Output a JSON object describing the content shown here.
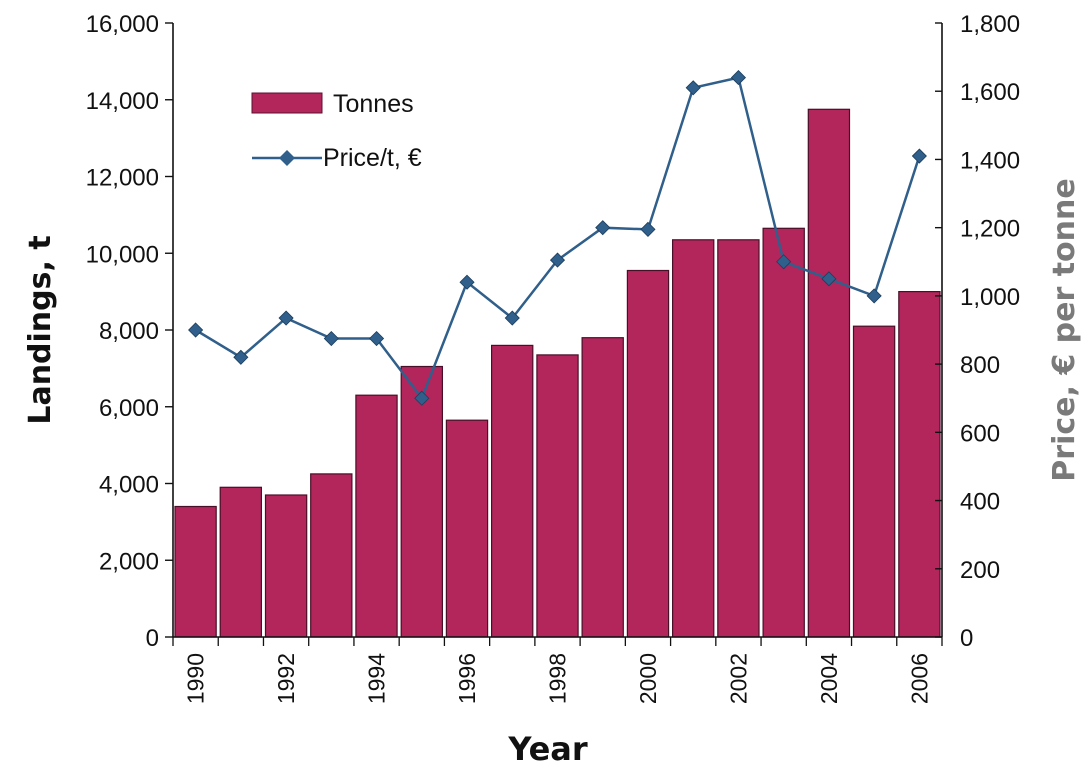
{
  "chart_data": {
    "type": "bar",
    "title": "",
    "xlabel": "Year",
    "ylabel": "Landings, t",
    "y2label": "Price, € per tonne",
    "categories": [
      "1990",
      "1991",
      "1992",
      "1993",
      "1994",
      "1995",
      "1996",
      "1997",
      "1998",
      "1999",
      "2000",
      "2001",
      "2002",
      "2003",
      "2004",
      "2005",
      "2006"
    ],
    "x_tick_labels": [
      "1990",
      "1992",
      "1994",
      "1996",
      "1998",
      "2000",
      "2002",
      "2004",
      "2006"
    ],
    "ylim": [
      0,
      16000
    ],
    "y_ticks": [
      0,
      2000,
      4000,
      6000,
      8000,
      10000,
      12000,
      14000,
      16000
    ],
    "y_tick_labels": [
      "0",
      "2,000",
      "4,000",
      "6,000",
      "8,000",
      "10,000",
      "12,000",
      "14,000",
      "16,000"
    ],
    "y2lim": [
      0,
      1800
    ],
    "y2_ticks": [
      0,
      200,
      400,
      600,
      800,
      1000,
      1200,
      1400,
      1600,
      1800
    ],
    "y2_tick_labels": [
      "0",
      "200",
      "400",
      "600",
      "800",
      "1,000",
      "1,200",
      "1,400",
      "1,600",
      "1,800"
    ],
    "grid": false,
    "legend_position": "top-left",
    "series": [
      {
        "name": "Tonnes",
        "type": "bar",
        "axis": "left",
        "color": "#b3265c",
        "values": [
          3400,
          3900,
          3700,
          4250,
          6300,
          7050,
          5650,
          7600,
          7350,
          7800,
          9550,
          10350,
          10350,
          10650,
          13750,
          8100,
          9000
        ]
      },
      {
        "name": "Price/t, €",
        "type": "line",
        "axis": "right",
        "color": "#2f5f8a",
        "values": [
          900,
          820,
          935,
          875,
          875,
          700,
          1040,
          935,
          1105,
          1200,
          1195,
          1610,
          1640,
          1100,
          1050,
          1000,
          1410
        ]
      }
    ]
  }
}
